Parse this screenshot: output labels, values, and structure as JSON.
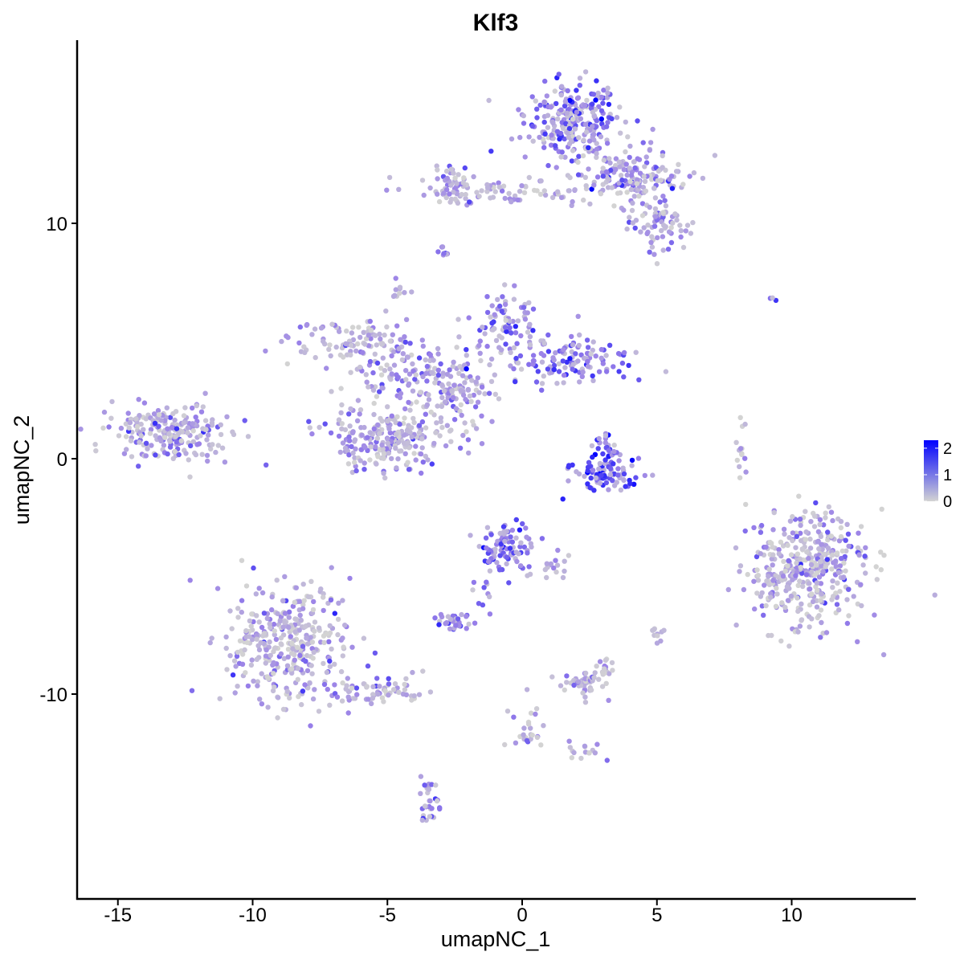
{
  "chart_data": {
    "type": "scatter",
    "title": "Klf3",
    "xlabel": "umapNC_1",
    "ylabel": "umapNC_2",
    "xlim": [
      -16.5,
      14.5
    ],
    "ylim": [
      -18.2,
      17.6
    ],
    "x_ticks": [
      -15,
      -10,
      -5,
      0,
      5,
      10
    ],
    "y_ticks": [
      10,
      0,
      -10
    ],
    "x_tick_labels": [
      "-15",
      "-10",
      "-5",
      "0",
      "5",
      "10"
    ],
    "y_tick_labels": [
      "10",
      "0",
      "-10"
    ],
    "grid": false,
    "legend_position": "right",
    "color_scale": {
      "low": "#d3d3d3",
      "high": "#0000ff",
      "min": 0,
      "max": 2.3,
      "breaks": [
        2,
        1,
        0
      ],
      "break_labels": [
        "2",
        "1",
        "0"
      ]
    },
    "clusters": [
      {
        "x": 1.9,
        "y": 14.3,
        "sx": 0.9,
        "sy": 0.8,
        "n": 260,
        "expr": 1.0,
        "sd": 0.5
      },
      {
        "x": 4.0,
        "y": 12.0,
        "sx": 1.3,
        "sy": 0.6,
        "n": 170,
        "expr": 0.9,
        "sd": 0.5
      },
      {
        "x": 5.1,
        "y": 9.9,
        "sx": 0.6,
        "sy": 0.5,
        "n": 70,
        "expr": 0.8,
        "sd": 0.4
      },
      {
        "x": -1.0,
        "y": 11.3,
        "sx": 1.7,
        "sy": 0.3,
        "n": 70,
        "expr": 0.6,
        "sd": 0.4
      },
      {
        "x": -2.6,
        "y": 11.6,
        "sx": 0.4,
        "sy": 0.5,
        "n": 45,
        "expr": 0.8,
        "sd": 0.4
      },
      {
        "x": -2.9,
        "y": 8.7,
        "sx": 0.1,
        "sy": 0.2,
        "n": 8,
        "expr": 0.9,
        "sd": 0.3
      },
      {
        "x": -6.3,
        "y": 5.1,
        "sx": 1.1,
        "sy": 0.5,
        "n": 90,
        "expr": 0.5,
        "sd": 0.4
      },
      {
        "x": -4.3,
        "y": 3.8,
        "sx": 1.2,
        "sy": 0.6,
        "n": 110,
        "expr": 0.8,
        "sd": 0.4
      },
      {
        "x": -2.6,
        "y": 2.9,
        "sx": 0.8,
        "sy": 0.6,
        "n": 90,
        "expr": 0.8,
        "sd": 0.4
      },
      {
        "x": -5.0,
        "y": 0.9,
        "sx": 1.1,
        "sy": 0.8,
        "n": 230,
        "expr": 0.7,
        "sd": 0.45
      },
      {
        "x": -0.6,
        "y": 5.4,
        "sx": 0.7,
        "sy": 0.8,
        "n": 90,
        "expr": 1.1,
        "sd": 0.45
      },
      {
        "x": 1.7,
        "y": 4.2,
        "sx": 1.1,
        "sy": 0.5,
        "n": 120,
        "expr": 1.2,
        "sd": 0.45
      },
      {
        "x": -4.6,
        "y": 7.2,
        "sx": 0.15,
        "sy": 0.2,
        "n": 10,
        "expr": 0.6,
        "sd": 0.3
      },
      {
        "x": -2.5,
        "y": 1.3,
        "sx": 0.6,
        "sy": 0.4,
        "n": 20,
        "expr": 0.5,
        "sd": 0.4
      },
      {
        "x": -13.0,
        "y": 1.1,
        "sx": 1.1,
        "sy": 0.6,
        "n": 220,
        "expr": 0.8,
        "sd": 0.45
      },
      {
        "x": 3.1,
        "y": -0.6,
        "sx": 0.7,
        "sy": 0.4,
        "n": 90,
        "expr": 1.6,
        "sd": 0.4
      },
      {
        "x": 3.2,
        "y": 0.6,
        "sx": 0.2,
        "sy": 0.3,
        "n": 25,
        "expr": 1.3,
        "sd": 0.4
      },
      {
        "x": 8.1,
        "y": 0.4,
        "sx": 0.15,
        "sy": 0.6,
        "n": 15,
        "expr": 0.3,
        "sd": 0.3
      },
      {
        "x": 10.6,
        "y": -4.7,
        "sx": 1.1,
        "sy": 1.2,
        "n": 420,
        "expr": 0.5,
        "sd": 0.5
      },
      {
        "x": -0.6,
        "y": -3.8,
        "sx": 0.5,
        "sy": 0.5,
        "n": 90,
        "expr": 1.4,
        "sd": 0.4
      },
      {
        "x": 0.9,
        "y": -4.6,
        "sx": 0.5,
        "sy": 0.3,
        "n": 20,
        "expr": 1.0,
        "sd": 0.4
      },
      {
        "x": -1.4,
        "y": -5.8,
        "sx": 0.2,
        "sy": 0.4,
        "n": 10,
        "expr": 1.0,
        "sd": 0.4
      },
      {
        "x": -8.6,
        "y": -7.9,
        "sx": 1.1,
        "sy": 1.3,
        "n": 350,
        "expr": 0.6,
        "sd": 0.45
      },
      {
        "x": -5.5,
        "y": -9.9,
        "sx": 0.9,
        "sy": 0.3,
        "n": 70,
        "expr": 0.6,
        "sd": 0.45
      },
      {
        "x": -2.6,
        "y": -6.9,
        "sx": 0.3,
        "sy": 0.2,
        "n": 30,
        "expr": 0.9,
        "sd": 0.4
      },
      {
        "x": 2.3,
        "y": -9.5,
        "sx": 0.4,
        "sy": 0.3,
        "n": 50,
        "expr": 0.7,
        "sd": 0.4
      },
      {
        "x": 3.0,
        "y": -8.9,
        "sx": 0.2,
        "sy": 0.3,
        "n": 15,
        "expr": 0.6,
        "sd": 0.4
      },
      {
        "x": 5.0,
        "y": -7.4,
        "sx": 0.15,
        "sy": 0.2,
        "n": 10,
        "expr": 0.7,
        "sd": 0.3
      },
      {
        "x": 0.0,
        "y": -11.6,
        "sx": 0.5,
        "sy": 0.5,
        "n": 25,
        "expr": 0.4,
        "sd": 0.4
      },
      {
        "x": 2.2,
        "y": -12.4,
        "sx": 0.4,
        "sy": 0.2,
        "n": 15,
        "expr": 0.4,
        "sd": 0.4
      },
      {
        "x": -3.5,
        "y": -14.6,
        "sx": 0.2,
        "sy": 0.5,
        "n": 30,
        "expr": 0.8,
        "sd": 0.4
      },
      {
        "x": 9.3,
        "y": 6.7,
        "sx": 0.2,
        "sy": 0.1,
        "n": 3,
        "expr": 1.0,
        "sd": 0.4
      }
    ]
  }
}
